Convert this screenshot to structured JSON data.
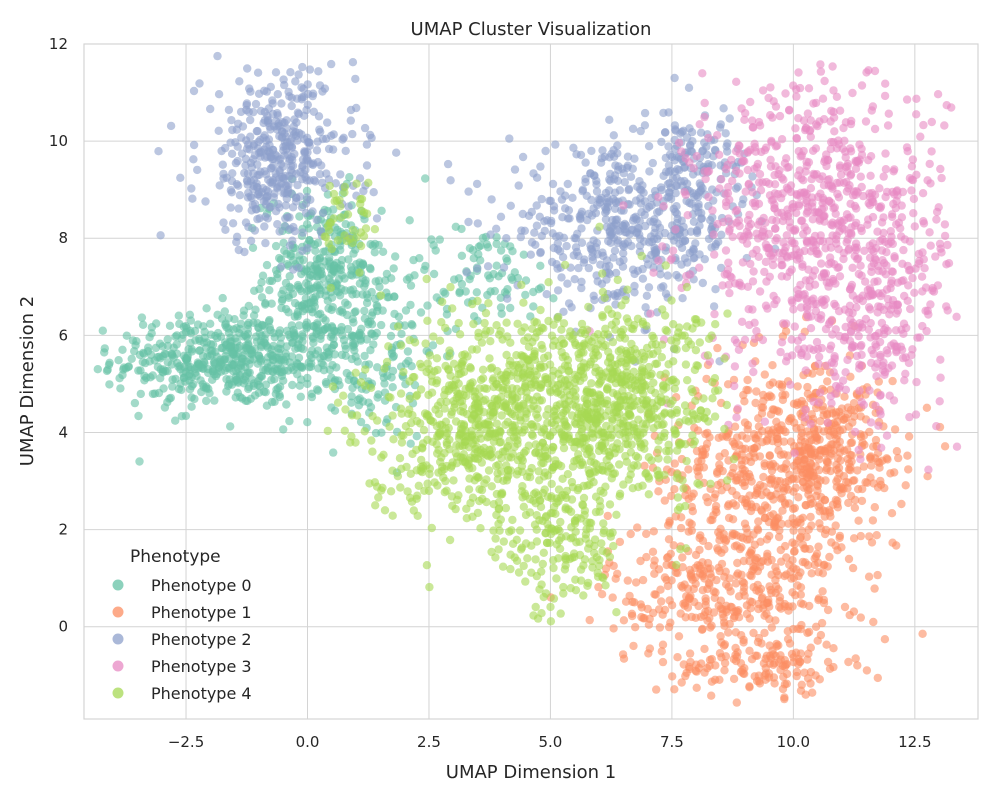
{
  "chart_data": {
    "type": "scatter",
    "title": "UMAP Cluster Visualization",
    "xlabel": "UMAP Dimension 1",
    "ylabel": "UMAP Dimension 2",
    "xlim": [
      -4.6,
      13.8
    ],
    "ylim": [
      -1.9,
      12.0
    ],
    "xticks": [
      -2.5,
      0.0,
      2.5,
      5.0,
      7.5,
      10.0,
      12.5
    ],
    "xtick_labels": [
      "−2.5",
      "0.0",
      "2.5",
      "5.0",
      "7.5",
      "10.0",
      "12.5"
    ],
    "yticks": [
      0,
      2,
      4,
      6,
      8,
      10,
      12
    ],
    "ytick_labels": [
      "0",
      "2",
      "4",
      "6",
      "8",
      "10",
      "12"
    ],
    "grid": true,
    "legend": {
      "title": "Phenotype",
      "placement": "lower-left"
    },
    "marker_alpha": 0.6,
    "series": [
      {
        "name": "Phenotype 0",
        "color": "#66c2a5",
        "regions": [
          {
            "center": [
              -1.6,
              5.5
            ],
            "spread": [
              1.2,
              0.5
            ],
            "n": 520
          },
          {
            "center": [
              0.3,
              7.3
            ],
            "spread": [
              0.6,
              0.8
            ],
            "n": 300
          },
          {
            "center": [
              1.1,
              5.8
            ],
            "spread": [
              0.8,
              1.0
            ],
            "n": 200
          },
          {
            "center": [
              3.6,
              7.2
            ],
            "spread": [
              0.9,
              0.5
            ],
            "n": 90
          }
        ]
      },
      {
        "name": "Phenotype 1",
        "color": "#fc8d62",
        "regions": [
          {
            "center": [
              9.6,
              3.2
            ],
            "spread": [
              1.1,
              1.2
            ],
            "n": 520
          },
          {
            "center": [
              8.6,
              0.8
            ],
            "spread": [
              1.2,
              0.8
            ],
            "n": 350
          },
          {
            "center": [
              10.8,
              3.7
            ],
            "spread": [
              0.8,
              0.7
            ],
            "n": 220
          },
          {
            "center": [
              9.4,
              -0.8
            ],
            "spread": [
              0.9,
              0.3
            ],
            "n": 120
          }
        ]
      },
      {
        "name": "Phenotype 2",
        "color": "#8da0cb",
        "regions": [
          {
            "center": [
              -0.6,
              9.6
            ],
            "spread": [
              0.8,
              0.9
            ],
            "n": 420
          },
          {
            "center": [
              6.5,
              8.2
            ],
            "spread": [
              1.2,
              0.8
            ],
            "n": 480
          },
          {
            "center": [
              8.0,
              9.5
            ],
            "spread": [
              0.5,
              0.6
            ],
            "n": 120
          }
        ]
      },
      {
        "name": "Phenotype 3",
        "color": "#e78ac3",
        "regions": [
          {
            "center": [
              10.5,
              8.3
            ],
            "spread": [
              1.3,
              1.5
            ],
            "n": 800
          },
          {
            "center": [
              11.5,
              6.2
            ],
            "spread": [
              0.8,
              1.0
            ],
            "n": 200
          }
        ]
      },
      {
        "name": "Phenotype 4",
        "color": "#a6d854",
        "regions": [
          {
            "center": [
              5.0,
              4.6
            ],
            "spread": [
              1.4,
              1.1
            ],
            "n": 700
          },
          {
            "center": [
              3.2,
              4.0
            ],
            "spread": [
              1.0,
              0.9
            ],
            "n": 350
          },
          {
            "center": [
              6.7,
              4.7
            ],
            "spread": [
              0.9,
              1.0
            ],
            "n": 350
          },
          {
            "center": [
              5.2,
              1.8
            ],
            "spread": [
              0.6,
              0.8
            ],
            "n": 180
          },
          {
            "center": [
              0.9,
              8.4
            ],
            "spread": [
              0.3,
              0.5
            ],
            "n": 40
          }
        ]
      }
    ]
  }
}
